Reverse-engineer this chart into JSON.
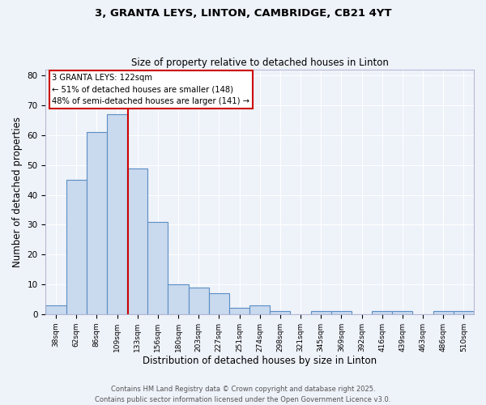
{
  "title1": "3, GRANTA LEYS, LINTON, CAMBRIDGE, CB21 4YT",
  "title2": "Size of property relative to detached houses in Linton",
  "xlabel": "Distribution of detached houses by size in Linton",
  "ylabel": "Number of detached properties",
  "categories": [
    "38sqm",
    "62sqm",
    "86sqm",
    "109sqm",
    "133sqm",
    "156sqm",
    "180sqm",
    "203sqm",
    "227sqm",
    "251sqm",
    "274sqm",
    "298sqm",
    "321sqm",
    "345sqm",
    "369sqm",
    "392sqm",
    "416sqm",
    "439sqm",
    "463sqm",
    "486sqm",
    "510sqm"
  ],
  "values": [
    3,
    45,
    61,
    67,
    49,
    31,
    10,
    9,
    7,
    2,
    3,
    1,
    0,
    1,
    1,
    0,
    1,
    1,
    0,
    1,
    1
  ],
  "bar_color": "#c9d9ee",
  "bar_edge_color": "#5b8ec4",
  "red_line_x": 3.54,
  "annotation_line1": "3 GRANTA LEYS: 122sqm",
  "annotation_line2": "← 51% of detached houses are smaller (148)",
  "annotation_line3": "48% of semi-detached houses are larger (141) →",
  "annotation_box_facecolor": "#ffffff",
  "annotation_box_edgecolor": "#cc0000",
  "footer1": "Contains HM Land Registry data © Crown copyright and database right 2025.",
  "footer2": "Contains public sector information licensed under the Open Government Licence v3.0.",
  "ylim": [
    0,
    82
  ],
  "yticks": [
    0,
    10,
    20,
    30,
    40,
    50,
    60,
    70,
    80
  ],
  "background_color": "#eef2f9",
  "grid_color": "#ffffff",
  "spine_color": "#aaaacc"
}
